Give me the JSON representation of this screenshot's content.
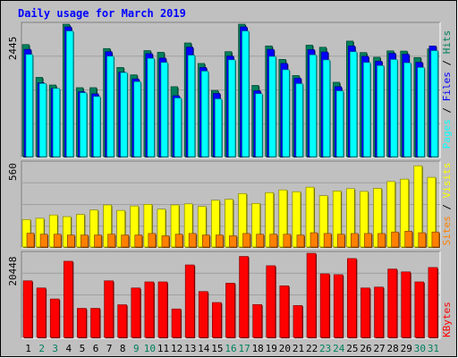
{
  "title": "Daily usage for March 2019",
  "colors": {
    "background": "#C0C0C0",
    "plot_background": "#C0C0C0",
    "title": "#0000FF",
    "hits": "#00805C",
    "files": "#0000FF",
    "pages": "#00FFFF",
    "visits": "#FFFF00",
    "sites": "#FF8000",
    "kbytes": "#FF0000",
    "weekday_label": "#000000",
    "weekend_label": "#00805C"
  },
  "axis_side_labels": {
    "top": {
      "parts": [
        "Pages",
        " / ",
        "Files",
        " / ",
        "Hits"
      ]
    },
    "middle": {
      "parts": [
        "Sites",
        " / ",
        "Visits"
      ]
    },
    "bottom": {
      "parts": [
        "KBytes"
      ]
    }
  },
  "chart_data": [
    {
      "type": "bar",
      "name": "hits-files-pages",
      "ylim": [
        0,
        2445
      ],
      "yticks": [
        "2445"
      ],
      "categories": [
        "1",
        "2",
        "3",
        "4",
        "5",
        "6",
        "7",
        "8",
        "9",
        "10",
        "11",
        "12",
        "13",
        "14",
        "15",
        "16",
        "17",
        "18",
        "19",
        "20",
        "21",
        "22",
        "23",
        "24",
        "25",
        "26",
        "27",
        "28",
        "29",
        "30",
        "31"
      ],
      "weekend_days": [
        "2",
        "3",
        "9",
        "10",
        "16",
        "17",
        "23",
        "24",
        "30",
        "31"
      ],
      "series": [
        {
          "name": "Hits",
          "values": [
            2072,
            1470,
            1330,
            2445,
            1281,
            1281,
            1998,
            1652,
            1516,
            1961,
            1930,
            1299,
            2101,
            1725,
            1230,
            1942,
            2445,
            1323,
            2047,
            1800,
            1504,
            2061,
            2022,
            1380,
            2135,
            1925,
            1840,
            1956,
            1952,
            1834,
            1993
          ]
        },
        {
          "name": "Files",
          "values": [
            1984,
            1369,
            1268,
            2396,
            1207,
            1168,
            1942,
            1566,
            1442,
            1905,
            1824,
            1133,
            2025,
            1652,
            1176,
            1861,
            2396,
            1225,
            1984,
            1726,
            1455,
            1979,
            1936,
            1300,
            2046,
            1856,
            1766,
            1912,
            1895,
            1746,
            2046
          ]
        },
        {
          "name": "Pages",
          "values": [
            1890,
            1357,
            1267,
            2320,
            1188,
            1119,
            1857,
            1558,
            1391,
            1818,
            1743,
            1091,
            1876,
            1584,
            1075,
            1791,
            2320,
            1171,
            1853,
            1609,
            1354,
            1882,
            1790,
            1222,
            1940,
            1743,
            1685,
            1797,
            1737,
            1651,
            1959
          ]
        }
      ]
    },
    {
      "type": "bar",
      "name": "visits-sites",
      "ylim": [
        0,
        560
      ],
      "yticks": [
        "560"
      ],
      "categories": [
        "1",
        "2",
        "3",
        "4",
        "5",
        "6",
        "7",
        "8",
        "9",
        "10",
        "11",
        "12",
        "13",
        "14",
        "15",
        "16",
        "17",
        "18",
        "19",
        "20",
        "21",
        "22",
        "23",
        "24",
        "25",
        "26",
        "27",
        "28",
        "29",
        "30",
        "31"
      ],
      "series": [
        {
          "name": "Visits",
          "values": [
            187,
            195,
            217,
            206,
            221,
            250,
            283,
            247,
            276,
            287,
            255,
            283,
            290,
            273,
            314,
            320,
            358,
            293,
            364,
            382,
            370,
            400,
            344,
            375,
            390,
            372,
            392,
            437,
            453,
            541,
            465
          ]
        },
        {
          "name": "Sites",
          "values": [
            97,
            90,
            90,
            85,
            85,
            85,
            90,
            85,
            85,
            95,
            80,
            90,
            95,
            85,
            85,
            80,
            95,
            90,
            90,
            90,
            85,
            100,
            95,
            90,
            95,
            95,
            95,
            105,
            110,
            100,
            105
          ]
        }
      ]
    },
    {
      "type": "bar",
      "name": "kbytes",
      "ylim": [
        0,
        20448
      ],
      "yticks": [
        "20448"
      ],
      "categories": [
        "1",
        "2",
        "3",
        "4",
        "5",
        "6",
        "7",
        "8",
        "9",
        "10",
        "11",
        "12",
        "13",
        "14",
        "15",
        "16",
        "17",
        "18",
        "19",
        "20",
        "21",
        "22",
        "23",
        "24",
        "25",
        "26",
        "27",
        "28",
        "29",
        "30",
        "31"
      ],
      "series": [
        {
          "name": "KBytes",
          "values": [
            13830,
            12110,
            9460,
            18530,
            7210,
            7210,
            13830,
            8070,
            12110,
            13570,
            13570,
            7060,
            17650,
            11250,
            8610,
            13260,
            19690,
            8120,
            17460,
            12620,
            7890,
            20448,
            15510,
            15310,
            19180,
            12110,
            12320,
            16660,
            15980,
            13570,
            17030
          ]
        }
      ]
    }
  ]
}
